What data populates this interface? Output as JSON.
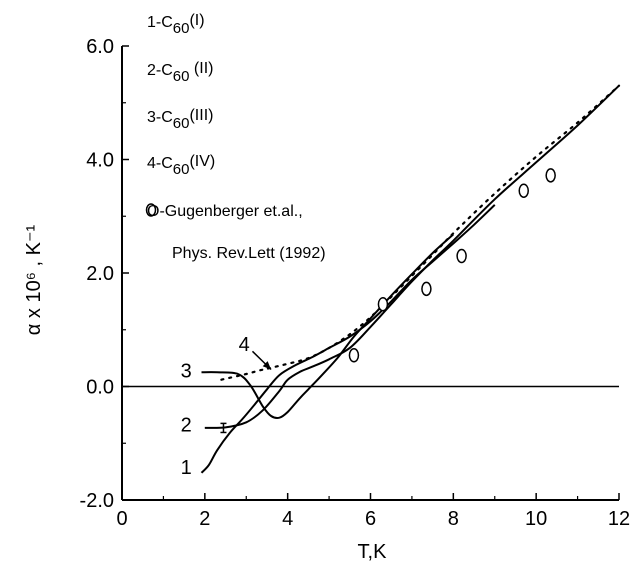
{
  "chart_data": {
    "type": "line",
    "xlabel": "T,K",
    "ylabel": "α x 10⁶ , K⁻¹",
    "xlim": [
      0,
      12
    ],
    "ylim": [
      -2.0,
      6.0
    ],
    "x_ticks": [
      "0",
      "2",
      "4",
      "6",
      "8",
      "10",
      "12"
    ],
    "y_ticks": [
      "-2.0",
      "0.0",
      "2.0",
      "4.0",
      "6.0"
    ],
    "y_tick_values": [
      -2,
      0,
      2,
      4,
      6
    ],
    "grid": false,
    "zero_line": true,
    "legend_items": [
      {
        "prefix": "1-C",
        "sub": "60",
        "suffix": "(I)"
      },
      {
        "prefix": "2-C",
        "sub": "60",
        "suffix": " (II)"
      },
      {
        "prefix": "3-C",
        "sub": "60",
        "suffix": "(III)"
      },
      {
        "prefix": "4-C",
        "sub": "60",
        "suffix": "(IV)"
      }
    ],
    "reference_note": [
      "O-Gugenberger et.al.,",
      "Phys. Rev.Lett (1992)"
    ],
    "series": [
      {
        "label": "1",
        "style": "solid",
        "points": [
          [
            1.92,
            -1.52
          ],
          [
            2.1,
            -1.38
          ],
          [
            2.3,
            -1.12
          ],
          [
            2.6,
            -0.82
          ],
          [
            2.9,
            -0.58
          ],
          [
            3.2,
            -0.32
          ],
          [
            3.5,
            -0.05
          ],
          [
            3.8,
            0.2
          ],
          [
            4.2,
            0.38
          ],
          [
            4.6,
            0.52
          ],
          [
            5.0,
            0.68
          ],
          [
            5.5,
            0.88
          ],
          [
            6.0,
            1.15
          ],
          [
            6.5,
            1.5
          ],
          [
            7.0,
            1.88
          ],
          [
            7.5,
            2.2
          ],
          [
            8.0,
            2.52
          ],
          [
            8.5,
            2.85
          ],
          [
            9.0,
            3.2
          ]
        ]
      },
      {
        "label": "2",
        "style": "solid",
        "points": [
          [
            2.0,
            -0.73
          ],
          [
            2.5,
            -0.72
          ],
          [
            3.0,
            -0.63
          ],
          [
            3.4,
            -0.42
          ],
          [
            3.8,
            -0.08
          ],
          [
            4.0,
            0.12
          ],
          [
            4.3,
            0.26
          ],
          [
            4.6,
            0.35
          ],
          [
            5.0,
            0.48
          ],
          [
            5.5,
            0.68
          ],
          [
            6.0,
            1.05
          ],
          [
            6.5,
            1.45
          ],
          [
            7.0,
            1.85
          ],
          [
            7.5,
            2.22
          ],
          [
            8.0,
            2.57
          ],
          [
            9.0,
            3.3
          ],
          [
            10.0,
            3.95
          ],
          [
            11.0,
            4.6
          ],
          [
            12.0,
            5.3
          ]
        ]
      },
      {
        "label": "3",
        "style": "solid",
        "points": [
          [
            1.92,
            0.25
          ],
          [
            2.3,
            0.25
          ],
          [
            2.8,
            0.22
          ],
          [
            3.1,
            0.02
          ],
          [
            3.4,
            -0.35
          ],
          [
            3.6,
            -0.52
          ],
          [
            3.8,
            -0.55
          ],
          [
            4.0,
            -0.45
          ],
          [
            4.3,
            -0.2
          ],
          [
            4.5,
            -0.05
          ],
          [
            4.8,
            0.18
          ],
          [
            5.2,
            0.5
          ],
          [
            5.6,
            0.88
          ],
          [
            6.0,
            1.2
          ],
          [
            6.5,
            1.6
          ],
          [
            7.0,
            1.98
          ],
          [
            7.5,
            2.35
          ],
          [
            8.0,
            2.68
          ]
        ]
      },
      {
        "label": "4",
        "style": "dotted",
        "points": [
          [
            2.4,
            0.12
          ],
          [
            3.0,
            0.22
          ],
          [
            3.3,
            0.28
          ],
          [
            3.6,
            0.33
          ],
          [
            4.0,
            0.4
          ],
          [
            4.5,
            0.5
          ],
          [
            5.0,
            0.68
          ],
          [
            5.5,
            0.92
          ],
          [
            6.0,
            1.22
          ],
          [
            6.5,
            1.58
          ],
          [
            7.0,
            1.95
          ],
          [
            7.5,
            2.32
          ],
          [
            8.0,
            2.7
          ],
          [
            9.0,
            3.4
          ],
          [
            10.0,
            4.05
          ],
          [
            11.0,
            4.65
          ],
          [
            12.0,
            5.3
          ]
        ]
      }
    ],
    "curve_labels": [
      {
        "text": "1",
        "x": 1.55,
        "y": -1.42
      },
      {
        "text": "2",
        "x": 1.55,
        "y": -0.67
      },
      {
        "text": "3",
        "x": 1.55,
        "y": 0.28
      },
      {
        "text": "4",
        "x": 2.95,
        "y": 0.75
      }
    ],
    "arrow": {
      "from": [
        3.15,
        0.62
      ],
      "to": [
        3.6,
        0.3
      ]
    },
    "error_bar": {
      "x": 2.45,
      "y": -0.73,
      "err": 0.08
    },
    "reference_points": [
      [
        5.6,
        0.55
      ],
      [
        6.3,
        1.45
      ],
      [
        7.35,
        1.72
      ],
      [
        8.2,
        2.3
      ],
      [
        9.7,
        3.45
      ],
      [
        10.35,
        3.72
      ]
    ]
  }
}
